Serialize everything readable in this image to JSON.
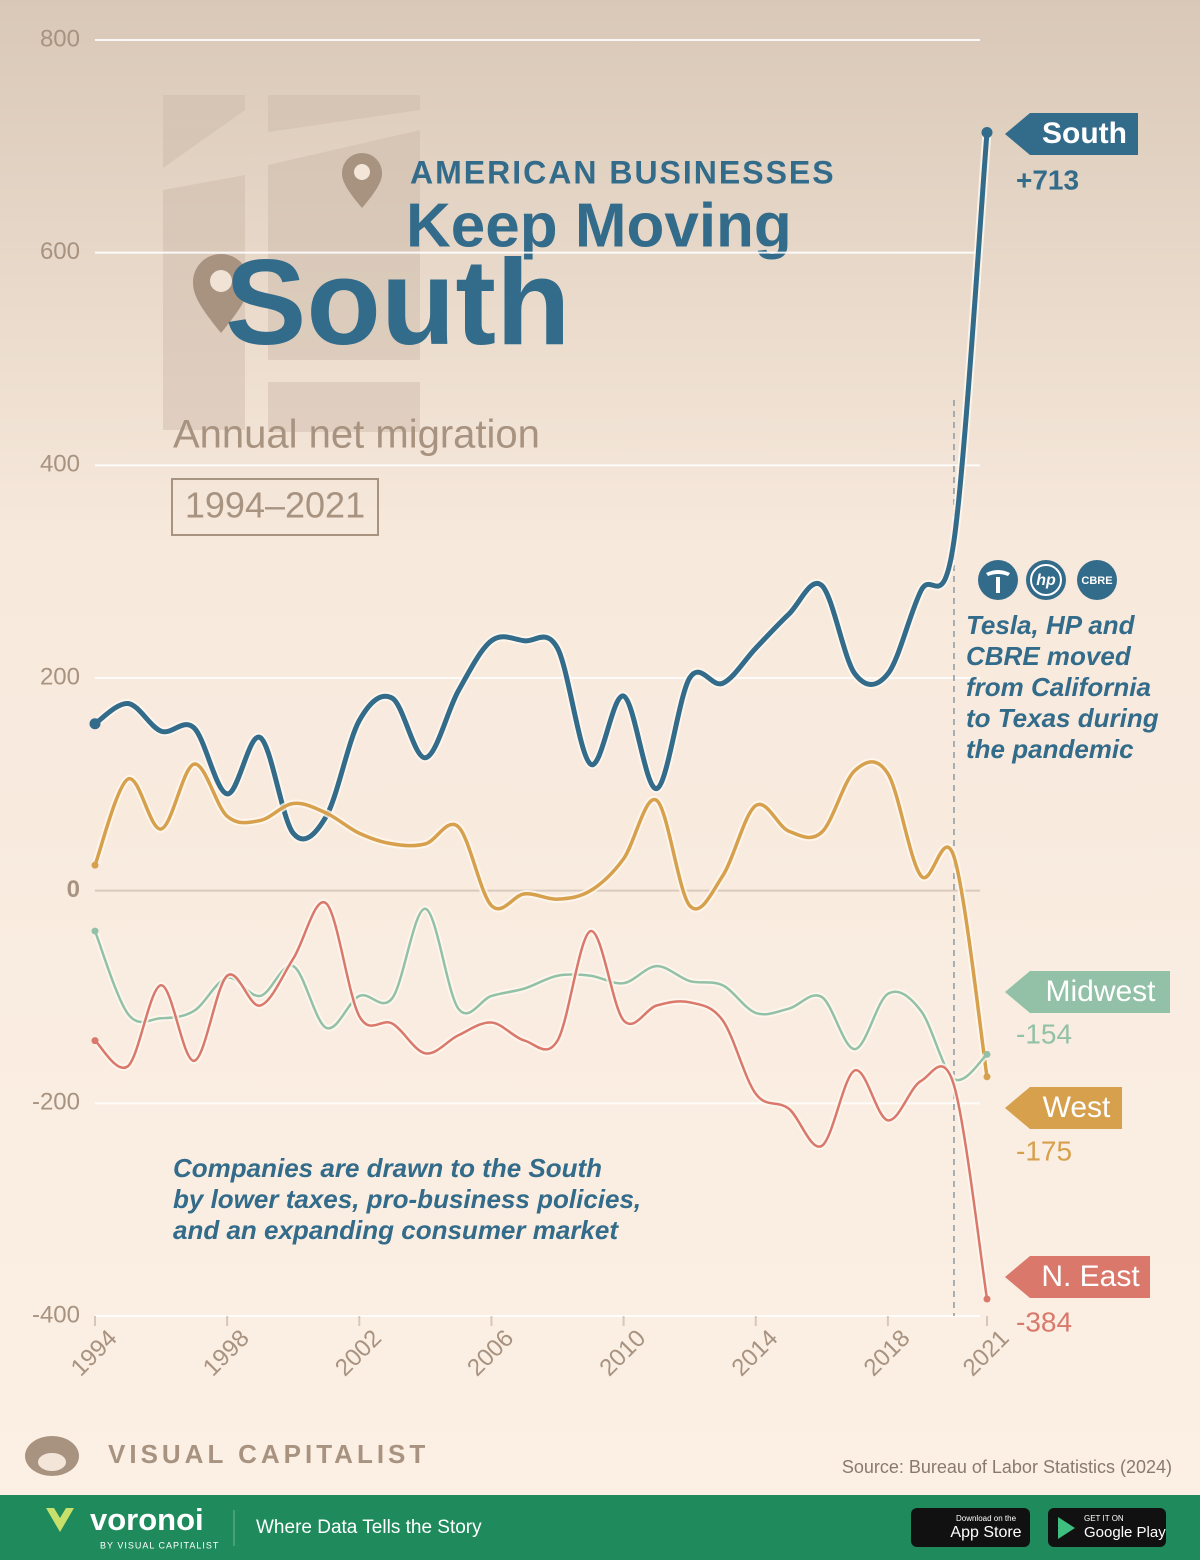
{
  "chart_data": {
    "type": "line",
    "title_kicker": "AMERICAN BUSINESSES",
    "title_line": "Keep Moving",
    "title_big": "South",
    "subtitle": "Annual net migration",
    "period": "1994–2021",
    "x": [
      1994,
      1995,
      1996,
      1997,
      1998,
      1999,
      2000,
      2001,
      2002,
      2003,
      2004,
      2005,
      2006,
      2007,
      2008,
      2009,
      2010,
      2011,
      2012,
      2013,
      2014,
      2015,
      2016,
      2017,
      2018,
      2019,
      2020,
      2021
    ],
    "xlim": [
      1994,
      2021
    ],
    "xticks": [
      1994,
      1998,
      2002,
      2006,
      2010,
      2014,
      2018,
      2021
    ],
    "ylim": [
      -400,
      800
    ],
    "yticks": [
      -400,
      -200,
      0,
      200,
      400,
      600,
      800
    ],
    "grid": true,
    "marker_x": 2020,
    "series": [
      {
        "name": "South",
        "color": "#336b8a",
        "values": [
          157,
          176,
          150,
          153,
          91,
          144,
          54,
          70,
          160,
          181,
          125,
          188,
          235,
          235,
          228,
          119,
          183,
          96,
          200,
          195,
          228,
          260,
          287,
          204,
          204,
          282,
          329,
          713
        ],
        "value_labels": [
          null,
          null,
          null,
          null,
          null,
          null,
          null,
          null,
          null,
          null,
          null,
          null,
          null,
          null,
          null,
          null,
          null,
          null,
          null,
          null,
          null,
          null,
          null,
          null,
          null,
          null,
          null,
          "+713"
        ]
      },
      {
        "name": "West",
        "color": "#d6a04c",
        "values": [
          24,
          105,
          58,
          119,
          70,
          66,
          82,
          73,
          54,
          44,
          44,
          60,
          -14,
          -3,
          -8,
          0,
          30,
          85,
          -14,
          14,
          80,
          56,
          55,
          113,
          110,
          14,
          32,
          -175
        ],
        "value_labels": [
          null,
          null,
          null,
          null,
          null,
          null,
          null,
          null,
          null,
          null,
          null,
          null,
          null,
          null,
          null,
          null,
          null,
          null,
          null,
          null,
          null,
          null,
          null,
          null,
          null,
          null,
          null,
          "-175"
        ]
      },
      {
        "name": "Midwest",
        "color": "#93c1a7",
        "values": [
          -38,
          -116,
          -120,
          -113,
          -82,
          -99,
          -71,
          -129,
          -99,
          -101,
          -17,
          -111,
          -99,
          -92,
          -80,
          -80,
          -87,
          -71,
          -85,
          -89,
          -115,
          -111,
          -100,
          -149,
          -97,
          -113,
          -177,
          -154
        ],
        "value_labels": [
          null,
          null,
          null,
          null,
          null,
          null,
          null,
          null,
          null,
          null,
          null,
          null,
          null,
          null,
          null,
          null,
          null,
          null,
          null,
          null,
          null,
          null,
          null,
          null,
          null,
          null,
          null,
          "-154"
        ]
      },
      {
        "name": "N. East",
        "color": "#d9786b",
        "values": [
          -141,
          -165,
          -89,
          -160,
          -80,
          -108,
          -64,
          -12,
          -118,
          -125,
          -153,
          -136,
          -124,
          -141,
          -141,
          -38,
          -122,
          -108,
          -105,
          -122,
          -191,
          -205,
          -240,
          -169,
          -216,
          -179,
          -183,
          -384
        ],
        "value_labels": [
          null,
          null,
          null,
          null,
          null,
          null,
          null,
          null,
          null,
          null,
          null,
          null,
          null,
          null,
          null,
          null,
          null,
          null,
          null,
          null,
          null,
          null,
          null,
          null,
          null,
          null,
          null,
          "-384"
        ]
      }
    ],
    "logos": [
      "hp",
      "CBRE"
    ],
    "annotation_right": [
      "Tesla, HP and",
      "CBRE moved",
      "from California",
      "to Texas during",
      "the pandemic"
    ],
    "annotation_bottom": [
      "Companies are drawn to the South",
      "by lower taxes, pro-business policies,",
      "and an expanding consumer market"
    ],
    "brand": "VISUAL CAPITALIST",
    "source": "Source: Bureau of Labor Statistics (2024)"
  },
  "footer": {
    "logo": "voronoi",
    "logo_sub": "BY VISUAL CAPITALIST",
    "tagline": "Where Data Tells the Story",
    "app_store_top": "Download on the",
    "app_store": "App Store",
    "google_top": "GET IT ON",
    "google": "Google Play"
  }
}
